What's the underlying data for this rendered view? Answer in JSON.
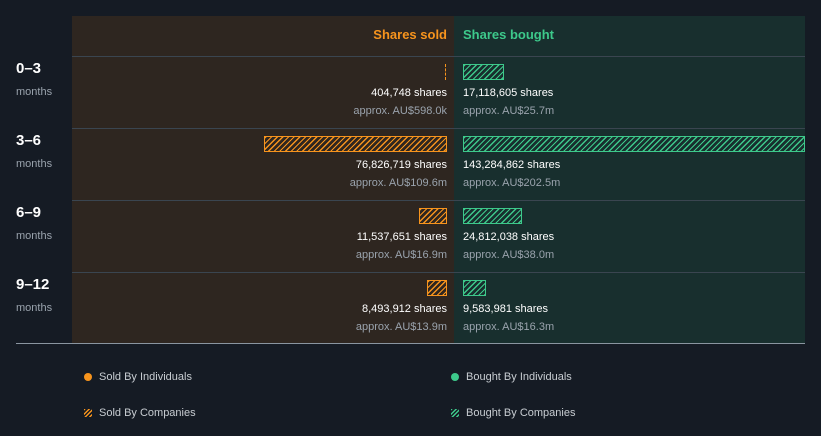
{
  "chart_data": {
    "type": "bar",
    "orientation": "horizontal-diverging",
    "headers": {
      "sold": "Shares sold",
      "bought": "Shares bought"
    },
    "max_shares": 143284862,
    "categories": [
      {
        "label": "0–3",
        "sub": "months"
      },
      {
        "label": "3–6",
        "sub": "months"
      },
      {
        "label": "6–9",
        "sub": "months"
      },
      {
        "label": "9–12",
        "sub": "months"
      }
    ],
    "series": [
      {
        "name": "Shares sold",
        "values": [
          404748,
          76826719,
          11537651,
          8493912
        ],
        "value_labels": [
          "404,748 shares",
          "76,826,719 shares",
          "11,537,651 shares",
          "8,493,912 shares"
        ],
        "approx_labels": [
          "approx. AU$598.0k",
          "approx. AU$109.6m",
          "approx. AU$16.9m",
          "approx. AU$13.9m"
        ]
      },
      {
        "name": "Shares bought",
        "values": [
          17118605,
          143284862,
          24812038,
          9583981
        ],
        "value_labels": [
          "17,118,605 shares",
          "143,284,862 shares",
          "24,812,038 shares",
          "9,583,981 shares"
        ],
        "approx_labels": [
          "approx. AU$25.7m",
          "approx. AU$202.5m",
          "approx. AU$38.0m",
          "approx. AU$16.3m"
        ]
      }
    ],
    "legend": [
      {
        "label": "Sold By Individuals",
        "kind": "dot",
        "color": "#f7941d"
      },
      {
        "label": "Bought By Individuals",
        "kind": "dot",
        "color": "#3dc98b"
      },
      {
        "label": "Sold By Companies",
        "kind": "hatch",
        "color": "#f7941d"
      },
      {
        "label": "Bought By Companies",
        "kind": "hatch",
        "color": "#3dc98b"
      }
    ],
    "colors": {
      "sold": "#f7941d",
      "bought": "#3dc98b",
      "background": "#151b24"
    }
  }
}
